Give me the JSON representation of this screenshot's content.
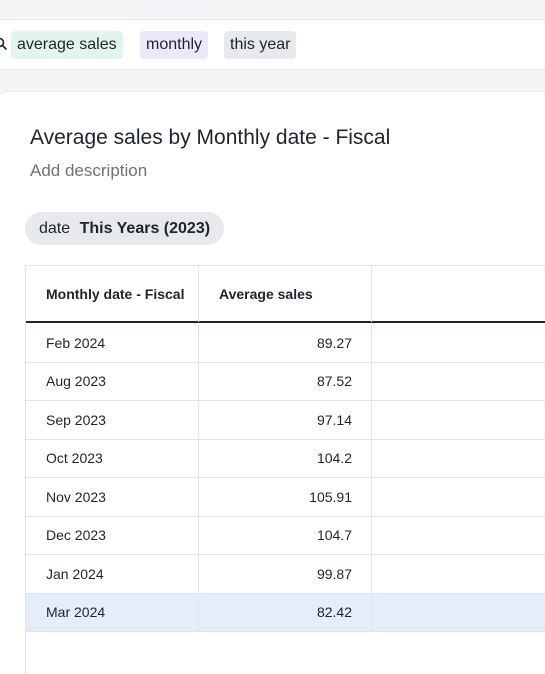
{
  "search": {
    "tokens": [
      {
        "label": "average sales",
        "kind": "measure",
        "color": "#e2f5ed"
      },
      {
        "label": "monthly",
        "kind": "attribute",
        "color": "#ece8fa"
      },
      {
        "label": "this year",
        "kind": "keyword",
        "color": "#e7e9ed"
      }
    ],
    "icon": "search-icon"
  },
  "answer": {
    "title": "Average sales by Monthly date - Fiscal",
    "description_placeholder": "Add description",
    "filter": {
      "field": "date",
      "value": "This Years (2023)"
    },
    "table": {
      "columns": [
        "Monthly date - Fiscal",
        "Average sales"
      ],
      "rows": [
        [
          "Feb 2024",
          "89.27"
        ],
        [
          "Aug 2023",
          "87.52"
        ],
        [
          "Sep 2023",
          "97.14"
        ],
        [
          "Oct 2023",
          "104.2"
        ],
        [
          "Nov 2023",
          "105.91"
        ],
        [
          "Dec 2023",
          "104.7"
        ],
        [
          "Jan 2024",
          "99.87"
        ],
        [
          "Mar 2024",
          "82.42"
        ]
      ],
      "selected_row_index": 7,
      "selected_color": "#e5ecfa"
    }
  }
}
